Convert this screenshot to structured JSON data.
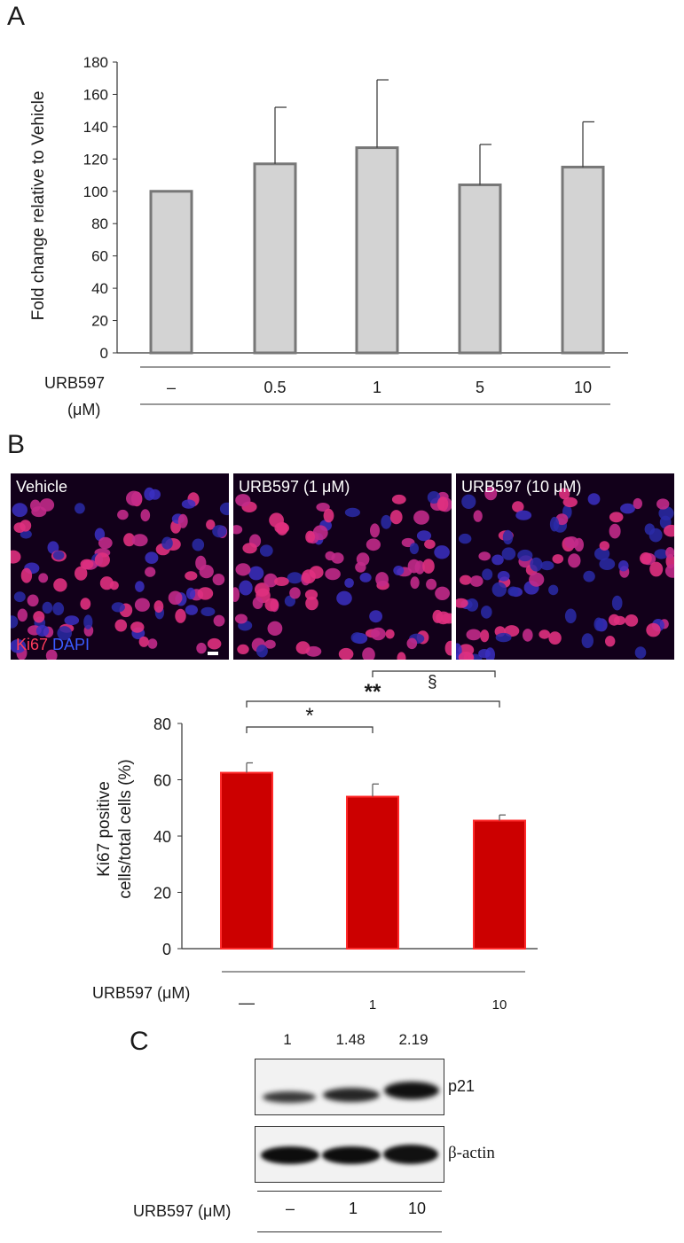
{
  "panel_a": {
    "letter": "A",
    "ylabel": "Fold change relative to Vehicle",
    "treatment_label": "URB597",
    "unit_label": "(μM)",
    "yticks": [
      "0",
      "20",
      "40",
      "60",
      "80",
      "100",
      "120",
      "140",
      "160",
      "180"
    ]
  },
  "panel_b": {
    "letter": "B",
    "images": [
      {
        "label": "Vehicle"
      },
      {
        "label": "URB597 (1 μM)"
      },
      {
        "label": "URB597 (10 μM)"
      }
    ],
    "stain_ki67": "Ki67",
    "stain_dapi": "DAPI",
    "ylabel_line1": "Ki67 positive",
    "ylabel_line2": "cells/total cells (%)",
    "treatment_label": "URB597 (μM)",
    "yticks": [
      "0",
      "20",
      "40",
      "60",
      "80"
    ],
    "sig_star": "*",
    "sig_double_star": "**",
    "sig_section": "§"
  },
  "panel_c": {
    "letter": "C",
    "ratios": [
      "1",
      "1.48",
      "2.19"
    ],
    "band_p21": "p21",
    "band_actin": "β-actin",
    "treatment_label": "URB597 (μM)",
    "lanes": [
      "–",
      "1",
      "10"
    ]
  },
  "chart_data": [
    {
      "type": "bar",
      "title": "",
      "xlabel": "URB597 (μM)",
      "ylabel": "Fold change relative to Vehicle",
      "categories": [
        "–",
        "0.5",
        "1",
        "5",
        "10"
      ],
      "values": [
        100,
        117,
        127,
        104,
        115
      ],
      "errors": [
        0,
        35,
        42,
        25,
        28
      ],
      "ylim": [
        0,
        180
      ],
      "bar_color": "#d3d3d3",
      "bar_edge": "#777777"
    },
    {
      "type": "bar",
      "title": "",
      "xlabel": "URB597 (μM)",
      "ylabel": "Ki67 positive cells/total cells (%)",
      "categories": [
        "—",
        "1",
        "10"
      ],
      "values": [
        62.5,
        54,
        45.5
      ],
      "errors": [
        3.5,
        4.5,
        2
      ],
      "ylim": [
        0,
        80
      ],
      "bar_color": "#cc0000",
      "significance": [
        {
          "pair": [
            "—",
            "1"
          ],
          "label": "*"
        },
        {
          "pair": [
            "—",
            "10"
          ],
          "label": "**"
        },
        {
          "pair": [
            "1",
            "10"
          ],
          "label": "§"
        }
      ]
    }
  ]
}
